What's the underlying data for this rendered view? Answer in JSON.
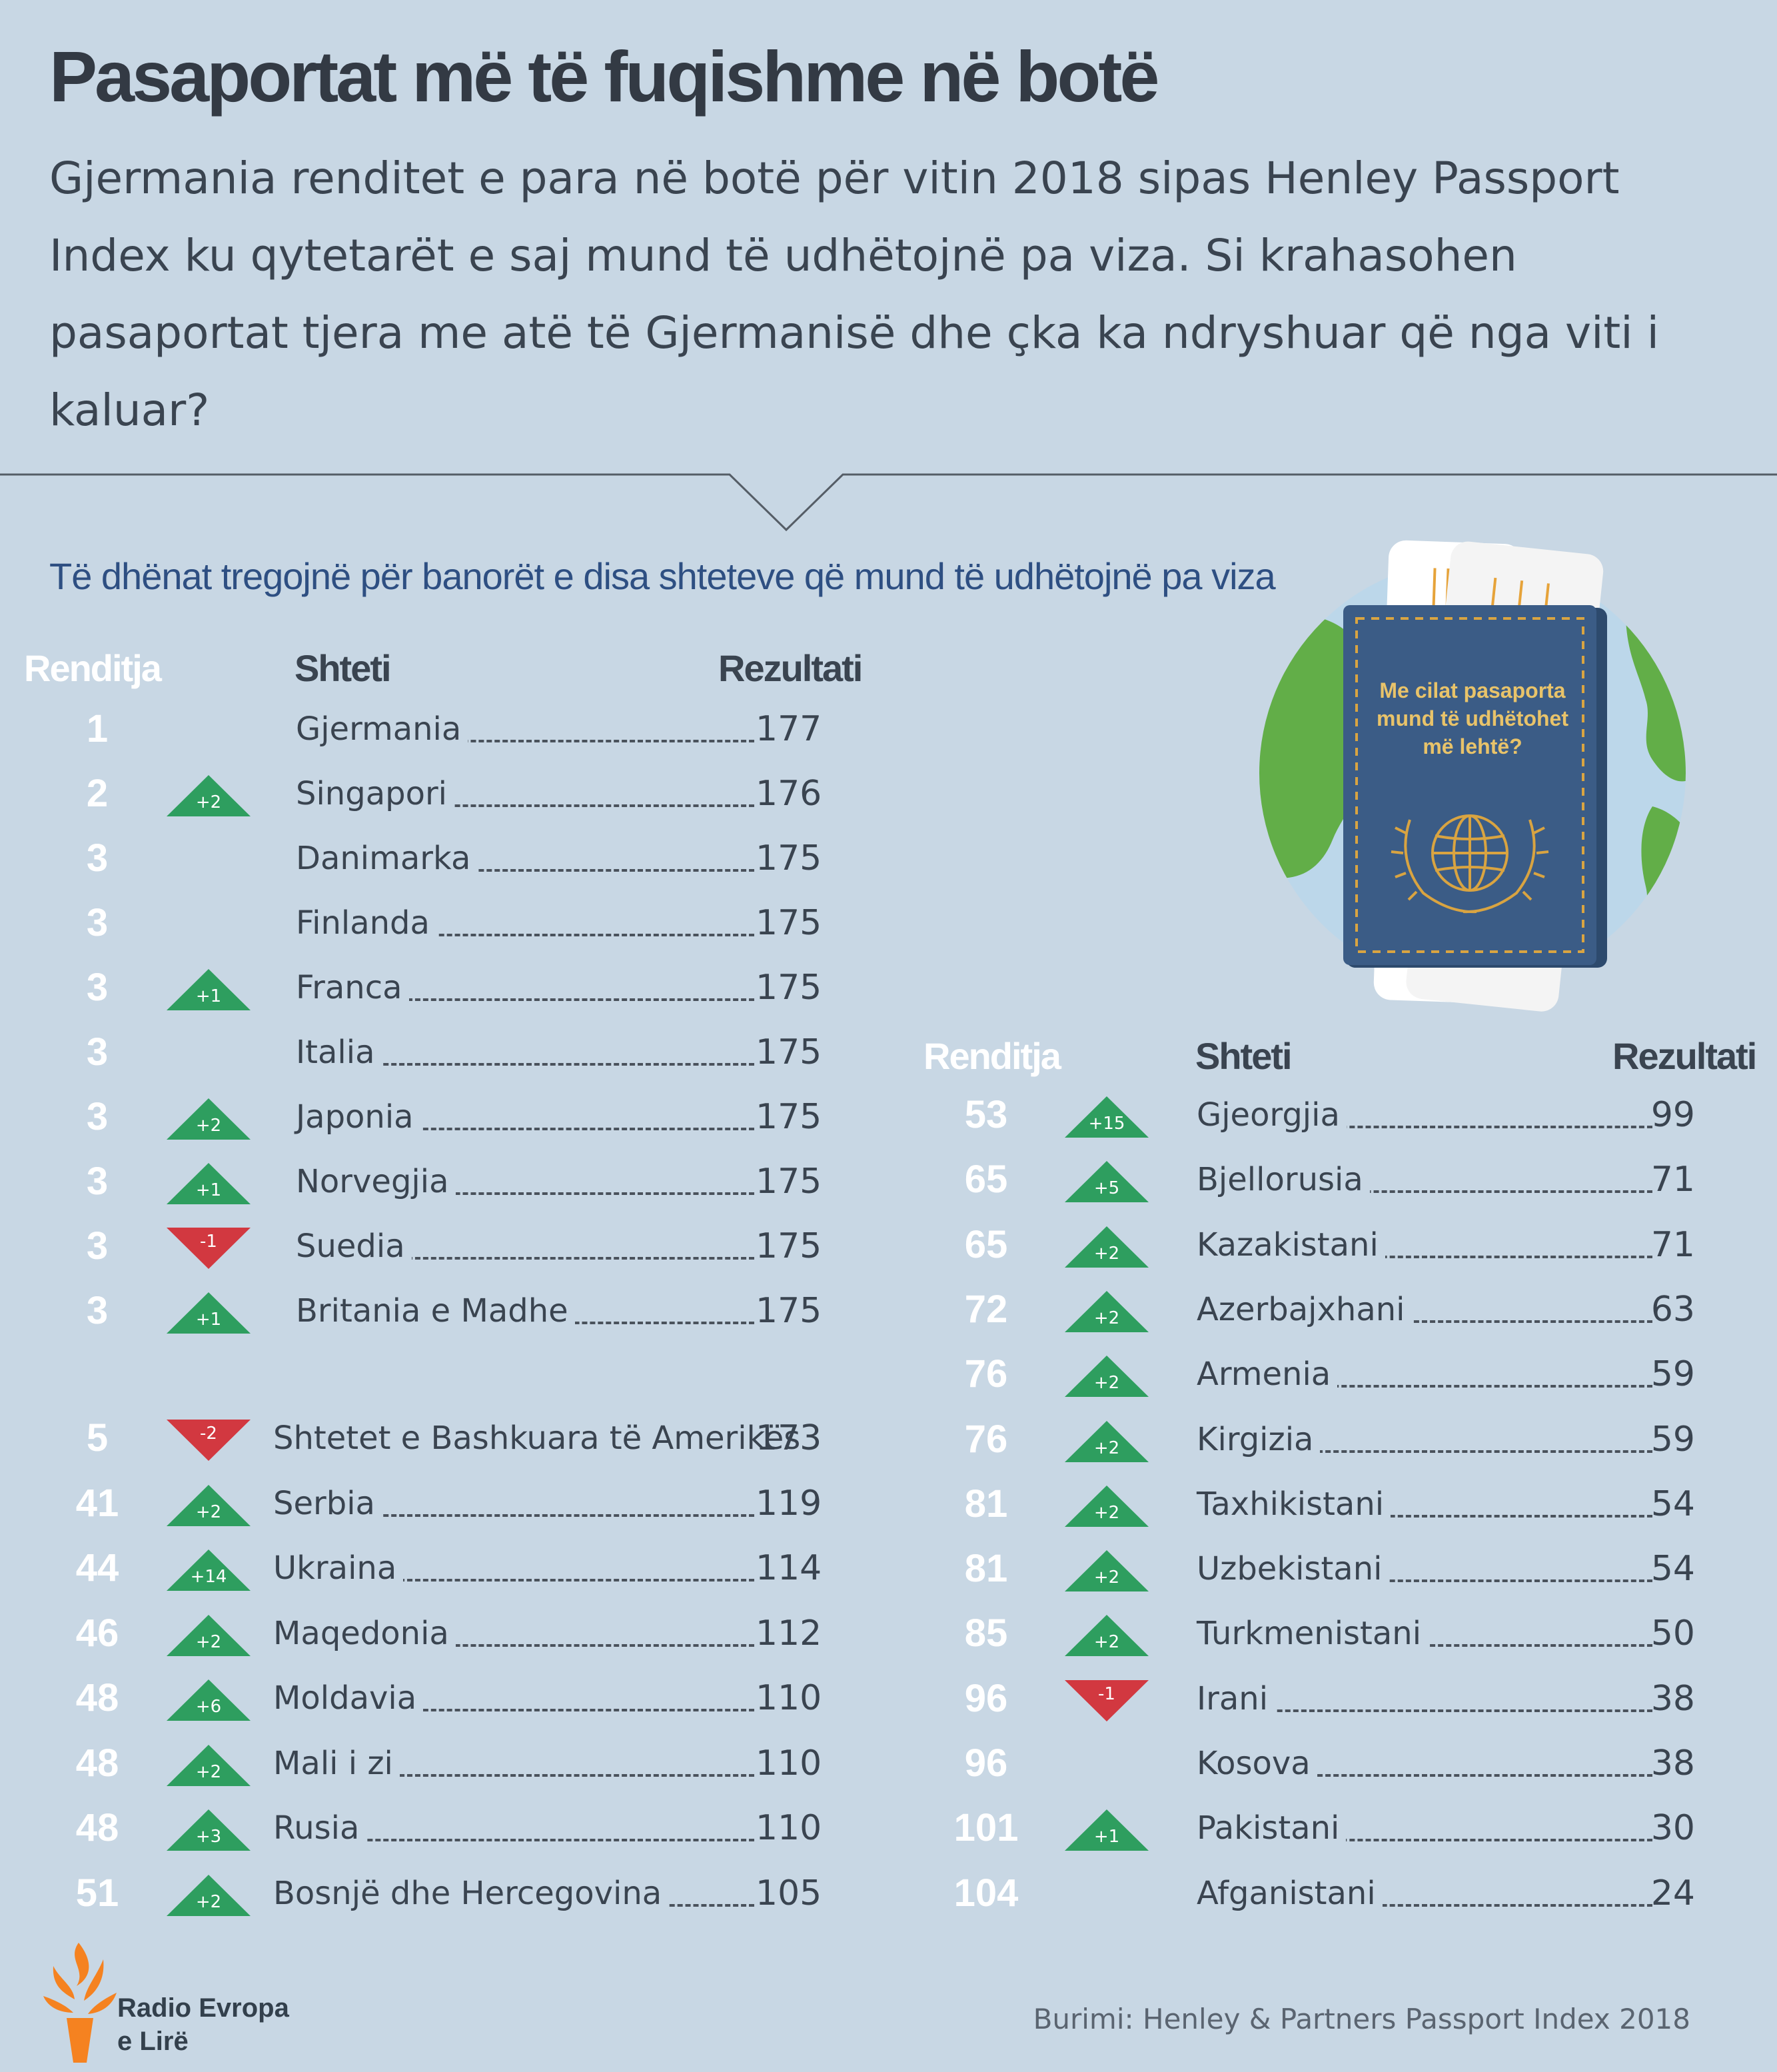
{
  "title": "Pasaportat më të fuqishme në botë",
  "subtitle": "Gjermania renditet e para në botë për vitin 2018 sipas Henley Passport Index ku qytetarët e saj mund të udhëtojnë pa viza. Si krahasohen pasaportat tjera me atë të Gjermanisë dhe çka ka ndryshuar që nga viti i kaluar?",
  "section_heading": "Të dhënat tregojnë për banorët e disa shteteve që mund të udhëtojnë pa viza",
  "columns": {
    "rank": "Renditja",
    "country": "Shteti",
    "score": "Rezultati"
  },
  "left_table": [
    {
      "rank": "1",
      "change": "",
      "country": "Gjermania",
      "score": "177"
    },
    {
      "rank": "2",
      "change": "+2",
      "country": "Singapori",
      "score": "176"
    },
    {
      "rank": "3",
      "change": "",
      "country": "Danimarka",
      "score": "175"
    },
    {
      "rank": "3",
      "change": "",
      "country": "Finlanda",
      "score": "175"
    },
    {
      "rank": "3",
      "change": "+1",
      "country": "Franca",
      "score": "175"
    },
    {
      "rank": "3",
      "change": "",
      "country": "Italia",
      "score": "175"
    },
    {
      "rank": "3",
      "change": "+2",
      "country": "Japonia",
      "score": "175"
    },
    {
      "rank": "3",
      "change": "+1",
      "country": "Norvegjia",
      "score": "175"
    },
    {
      "rank": "3",
      "change": "-1",
      "country": "Suedia",
      "score": "175"
    },
    {
      "rank": "3",
      "change": "+1",
      "country": "Britania e Madhe",
      "score": "175"
    },
    {
      "rank": "5",
      "change": "-2",
      "country": "Shtetet e Bashkuara të Amerikës",
      "score": "173"
    },
    {
      "rank": "41",
      "change": "+2",
      "country": "Serbia",
      "score": "119"
    },
    {
      "rank": "44",
      "change": "+14",
      "country": "Ukraina",
      "score": "114"
    },
    {
      "rank": "46",
      "change": "+2",
      "country": "Maqedonia",
      "score": "112"
    },
    {
      "rank": "48",
      "change": "+6",
      "country": "Moldavia",
      "score": "110"
    },
    {
      "rank": "48",
      "change": "+2",
      "country": "Mali i zi",
      "score": "110"
    },
    {
      "rank": "48",
      "change": "+3",
      "country": "Rusia",
      "score": "110"
    },
    {
      "rank": "51",
      "change": "+2",
      "country": "Bosnjë dhe Hercegovina",
      "score": "105"
    }
  ],
  "right_table": [
    {
      "rank": "53",
      "change": "+15",
      "country": "Gjeorgjia",
      "score": "99"
    },
    {
      "rank": "65",
      "change": "+5",
      "country": "Bjellorusia",
      "score": "71"
    },
    {
      "rank": "65",
      "change": "+2",
      "country": "Kazakistani",
      "score": "71"
    },
    {
      "rank": "72",
      "change": "+2",
      "country": "Azerbajxhani",
      "score": "63"
    },
    {
      "rank": "76",
      "change": "+2",
      "country": "Armenia",
      "score": "59"
    },
    {
      "rank": "76",
      "change": "+2",
      "country": "Kirgizia",
      "score": "59"
    },
    {
      "rank": "81",
      "change": "+2",
      "country": "Taxhikistani",
      "score": "54"
    },
    {
      "rank": "81",
      "change": "+2",
      "country": "Uzbekistani",
      "score": "54"
    },
    {
      "rank": "85",
      "change": "+2",
      "country": "Turkmenistani",
      "score": "50"
    },
    {
      "rank": "96",
      "change": "-1",
      "country": "Irani",
      "score": "38"
    },
    {
      "rank": "96",
      "change": "",
      "country": "Kosova",
      "score": "38"
    },
    {
      "rank": "101",
      "change": "+1",
      "country": "Pakistani",
      "score": "30"
    },
    {
      "rank": "104",
      "change": "",
      "country": "Afganistani",
      "score": "24"
    }
  ],
  "passport_text": "Me cilat pasaporta mund të udhëtohet më lehtë?",
  "logo_text_line1": "Radio Evropa",
  "logo_text_line2": "e Lirë",
  "source": "Burimi: Henley & Partners Passport Index 2018",
  "colors": {
    "background": "#c8d7e4",
    "up": "#2e9e5f",
    "down": "#d23840",
    "heading_blue": "#2e4f82",
    "passport": "#3b5c86",
    "globe_land": "#62ae48",
    "globe_water": "#bcd7ea",
    "logo_orange": "#f58220"
  },
  "icons": [
    "passport-icon",
    "globe-icon",
    "torch-logo-icon",
    "triangle-up-icon",
    "triangle-down-icon"
  ]
}
